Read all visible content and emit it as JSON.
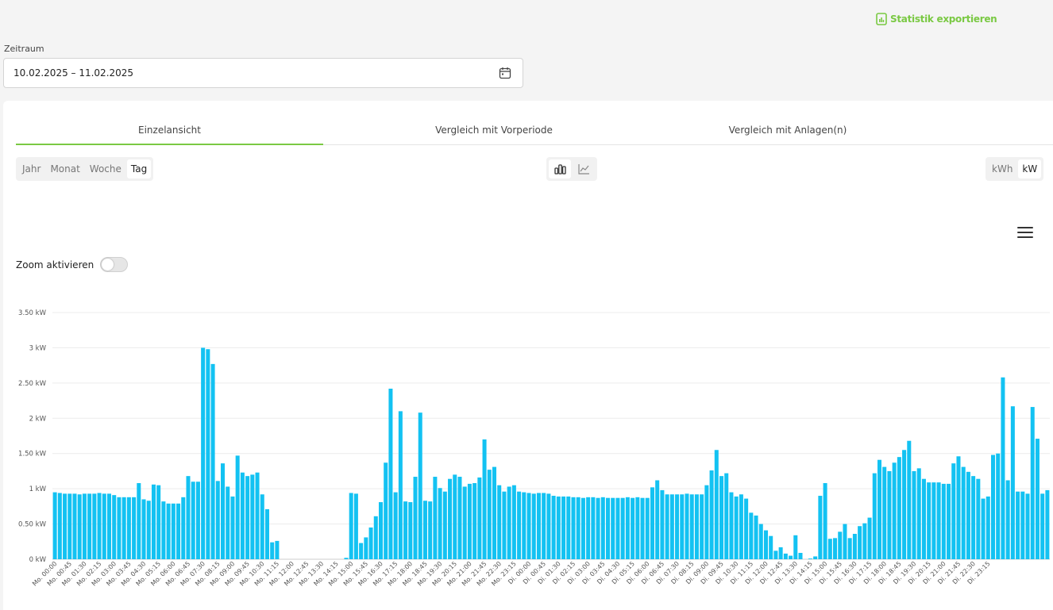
{
  "header": {
    "export_label": "Statistik exportieren",
    "export_icon": "chart-file-icon"
  },
  "range": {
    "label": "Zeitraum",
    "value": "10.02.2025 – 11.02.2025",
    "icon": "calendar-icon"
  },
  "tabs": [
    {
      "label": "Einzelansicht",
      "active": true
    },
    {
      "label": "Vergleich mit Vorperiode",
      "active": false
    },
    {
      "label": "Vergleich mit Anlagen(n)",
      "active": false
    }
  ],
  "period": {
    "options": [
      "Jahr",
      "Monat",
      "Woche",
      "Tag"
    ],
    "selected": "Tag"
  },
  "chart_type": {
    "options": [
      "bar-chart-icon",
      "line-chart-icon"
    ],
    "selected": "bar-chart-icon"
  },
  "unit": {
    "options": [
      "kWh",
      "kW"
    ],
    "selected": "kW"
  },
  "zoom": {
    "label": "Zoom aktivieren",
    "enabled": false
  },
  "menu_icon": "hamburger-menu-icon",
  "colors": {
    "accent": "#7ac943",
    "bar": "#13c2f2"
  },
  "chart_data": {
    "type": "bar",
    "title": "",
    "xlabel": "",
    "ylabel": "",
    "unit": "kW",
    "ylim": [
      0,
      3.5
    ],
    "yticks": [
      "0 kW",
      "0.50 kW",
      "1 kW",
      "1.50 kW",
      "2 kW",
      "2.50 kW",
      "3 kW",
      "3.50 kW"
    ],
    "interval_minutes": 15,
    "x_tick_labels": [
      "Mo. 00:00",
      "Mo. 00:45",
      "Mo. 01:30",
      "Mo. 02:15",
      "Mo. 03:00",
      "Mo. 03:45",
      "Mo. 04:30",
      "Mo. 05:15",
      "Mo. 06:00",
      "Mo. 06:45",
      "Mo. 07:30",
      "Mo. 08:15",
      "Mo. 09:00",
      "Mo. 09:45",
      "Mo. 10:30",
      "Mo. 11:15",
      "Mo. 12:00",
      "Mo. 12:45",
      "Mo. 13:30",
      "Mo. 14:15",
      "Mo. 15:00",
      "Mo. 15:45",
      "Mo. 16:30",
      "Mo. 17:15",
      "Mo. 18:00",
      "Mo. 18:45",
      "Mo. 19:30",
      "Mo. 20:15",
      "Mo. 21:00",
      "Mo. 21:45",
      "Mo. 22:30",
      "Mo. 23:15",
      "Di. 00:00",
      "Di. 00:45",
      "Di. 01:30",
      "Di. 02:15",
      "Di. 03:00",
      "Di. 03:45",
      "Di. 04:30",
      "Di. 05:15",
      "Di. 06:00",
      "Di. 06:45",
      "Di. 07:30",
      "Di. 08:15",
      "Di. 09:00",
      "Di. 09:45",
      "Di. 10:30",
      "Di. 11:15",
      "Di. 12:00",
      "Di. 12:45",
      "Di. 13:30",
      "Di. 14:15",
      "Di. 15:00",
      "Di. 15:45",
      "Di. 16:30",
      "Di. 17:15",
      "Di. 18:00",
      "Di. 18:45",
      "Di. 19:30",
      "Di. 20:15",
      "Di. 21:00",
      "Di. 21:45",
      "Di. 22:30",
      "Di. 23:15"
    ],
    "values": [
      0.95,
      0.94,
      0.93,
      0.93,
      0.93,
      0.92,
      0.93,
      0.93,
      0.93,
      0.94,
      0.93,
      0.93,
      0.91,
      0.88,
      0.88,
      0.88,
      0.88,
      1.08,
      0.85,
      0.83,
      1.06,
      1.05,
      0.82,
      0.79,
      0.79,
      0.79,
      0.88,
      1.18,
      1.1,
      1.1,
      3.0,
      2.98,
      2.77,
      1.11,
      1.36,
      1.03,
      0.89,
      1.47,
      1.23,
      1.18,
      1.2,
      1.23,
      0.92,
      0.71,
      0.24,
      0.26,
      0,
      0,
      0,
      0,
      0,
      0,
      0,
      0,
      0,
      0,
      0,
      0,
      0,
      0.02,
      0.94,
      0.93,
      0.23,
      0.31,
      0.45,
      0.61,
      0.81,
      1.37,
      2.42,
      0.95,
      2.1,
      0.82,
      0.81,
      1.17,
      2.08,
      0.83,
      0.82,
      1.17,
      1.01,
      0.96,
      1.14,
      1.2,
      1.17,
      1.03,
      1.07,
      1.08,
      1.16,
      1.7,
      1.27,
      1.31,
      1.05,
      0.96,
      1.03,
      1.05,
      0.96,
      0.95,
      0.94,
      0.93,
      0.94,
      0.94,
      0.93,
      0.9,
      0.89,
      0.89,
      0.89,
      0.88,
      0.88,
      0.87,
      0.88,
      0.88,
      0.87,
      0.88,
      0.87,
      0.87,
      0.87,
      0.87,
      0.88,
      0.87,
      0.88,
      0.87,
      0.87,
      1.02,
      1.12,
      0.98,
      0.92,
      0.92,
      0.92,
      0.92,
      0.93,
      0.92,
      0.92,
      0.92,
      1.05,
      1.26,
      1.55,
      1.18,
      1.22,
      0.95,
      0.89,
      0.92,
      0.86,
      0.66,
      0.62,
      0.5,
      0.41,
      0.33,
      0.12,
      0.17,
      0.08,
      0.05,
      0.34,
      0.09,
      0,
      0.01,
      0.04,
      0.9,
      1.08,
      0.29,
      0.3,
      0.39,
      0.5,
      0.3,
      0.36,
      0.47,
      0.51,
      0.59,
      1.22,
      1.41,
      1.31,
      1.25,
      1.37,
      1.45,
      1.55,
      1.68,
      1.25,
      1.29,
      1.14,
      1.09,
      1.09,
      1.09,
      1.07,
      1.07,
      1.36,
      1.46,
      1.31,
      1.24,
      1.18,
      1.14,
      0.86,
      0.89,
      1.48,
      1.5,
      2.58,
      1.12,
      2.17,
      0.96,
      0.96,
      0.93,
      2.16,
      1.71,
      0.93,
      0.98
    ]
  }
}
